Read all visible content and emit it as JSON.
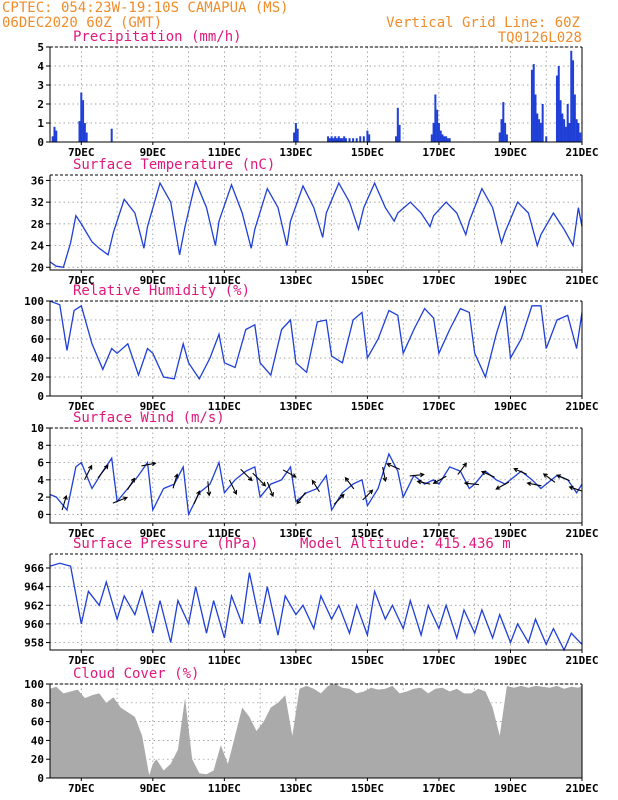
{
  "header": {
    "left_line1": "CPTEC:  054:23W-19:10S  CAMAPUA (MS)",
    "left_line2": "06DEC2020 60Z (GMT)",
    "right_line1": "Vertical Grid Line: 60Z",
    "right_line2": "TQ0126L028"
  },
  "colors": {
    "line": "#1f3fd6",
    "bar": "#1f3fd6",
    "cloud": "#aaaaaa",
    "title": "#e0197c",
    "header": "#f08c2a",
    "arrow": "#000000"
  },
  "x_axis": {
    "start_day": 6.125,
    "end_day": 21.0,
    "tick_days": [
      7,
      9,
      11,
      13,
      15,
      17,
      19,
      21
    ],
    "tick_labels": [
      "7DEC",
      "9DEC",
      "11DEC",
      "13DEC",
      "15DEC",
      "17DEC",
      "19DEC",
      "21DEC"
    ]
  },
  "chart_data": [
    {
      "id": "precip",
      "type": "bar",
      "title": "Precipitation (mm/h)",
      "ylim": [
        0,
        5
      ],
      "yticks": [
        0,
        1,
        2,
        3,
        4,
        5
      ],
      "x": [
        6.2,
        6.25,
        6.3,
        6.95,
        7.0,
        7.05,
        7.1,
        7.15,
        7.85,
        12.95,
        13.0,
        13.05,
        13.9,
        13.95,
        14.0,
        14.05,
        14.1,
        14.15,
        14.2,
        14.25,
        14.3,
        14.35,
        14.4,
        14.5,
        14.6,
        14.7,
        14.8,
        14.9,
        15.0,
        15.05,
        15.8,
        15.85,
        15.9,
        16.8,
        16.85,
        16.9,
        16.95,
        17.0,
        17.05,
        17.1,
        17.15,
        17.2,
        17.25,
        17.3,
        18.7,
        18.75,
        18.8,
        18.85,
        18.9,
        19.6,
        19.65,
        19.7,
        19.75,
        19.8,
        19.85,
        19.9,
        20.0,
        20.3,
        20.35,
        20.4,
        20.45,
        20.5,
        20.55,
        20.6,
        20.65,
        20.7,
        20.75,
        20.8,
        20.85,
        20.9,
        20.95
      ],
      "values": [
        0.3,
        0.8,
        0.6,
        1.1,
        2.6,
        2.2,
        1.0,
        0.5,
        0.7,
        0.5,
        1.0,
        0.7,
        0.3,
        0.2,
        0.3,
        0.2,
        0.3,
        0.2,
        0.3,
        0.2,
        0.2,
        0.3,
        0.2,
        0.2,
        0.2,
        0.2,
        0.3,
        0.3,
        0.6,
        0.4,
        0.3,
        1.8,
        0.9,
        0.4,
        1.0,
        2.5,
        1.7,
        1.0,
        0.6,
        0.4,
        0.3,
        0.3,
        0.2,
        0.2,
        0.5,
        1.2,
        2.1,
        1.0,
        0.4,
        3.8,
        4.1,
        2.5,
        1.5,
        1.2,
        1.0,
        2.0,
        0.3,
        3.5,
        4.0,
        2.2,
        1.5,
        1.2,
        0.8,
        2.0,
        1.0,
        4.8,
        4.3,
        2.5,
        1.2,
        1.0,
        0.5
      ]
    },
    {
      "id": "temp",
      "type": "line",
      "title": "Surface Temperature (nC)",
      "ylim": [
        19.5,
        37
      ],
      "yticks": [
        20,
        24,
        28,
        32,
        36
      ],
      "x": [
        6.125,
        6.3,
        6.5,
        6.7,
        6.85,
        7.0,
        7.3,
        7.5,
        7.75,
        7.9,
        8.2,
        8.5,
        8.75,
        8.85,
        9.2,
        9.5,
        9.75,
        9.9,
        10.2,
        10.5,
        10.75,
        10.85,
        11.2,
        11.5,
        11.75,
        11.85,
        12.2,
        12.5,
        12.75,
        12.85,
        13.2,
        13.5,
        13.75,
        13.85,
        14.2,
        14.5,
        14.75,
        14.9,
        15.2,
        15.5,
        15.75,
        15.85,
        16.2,
        16.5,
        16.75,
        16.85,
        17.2,
        17.5,
        17.75,
        17.85,
        18.2,
        18.5,
        18.75,
        18.85,
        19.2,
        19.5,
        19.75,
        19.85,
        20.2,
        20.5,
        20.75,
        20.9,
        21.0
      ],
      "values": [
        21,
        20.2,
        20,
        24.5,
        29.5,
        28,
        24.7,
        23.5,
        22.3,
        26.5,
        32.5,
        30,
        23.5,
        27.5,
        35.5,
        32,
        22.3,
        27.5,
        35.8,
        31,
        24,
        28.5,
        35.2,
        30,
        23.5,
        27,
        34.5,
        31,
        24,
        28.5,
        35,
        31,
        25.5,
        30,
        35.5,
        32,
        27,
        31,
        35.5,
        31,
        28.5,
        30,
        32,
        30,
        27.5,
        29.5,
        32,
        30,
        26,
        28.5,
        34.5,
        31,
        24.5,
        26.5,
        32,
        30,
        24,
        26,
        30,
        27,
        24,
        31,
        27.5
      ]
    },
    {
      "id": "rh",
      "type": "line",
      "title": "Relative Humidity (%)",
      "ylim": [
        0,
        100
      ],
      "yticks": [
        0,
        20,
        40,
        60,
        80,
        100
      ],
      "x": [
        6.125,
        6.4,
        6.6,
        6.8,
        7.0,
        7.3,
        7.6,
        7.85,
        8.0,
        8.3,
        8.6,
        8.85,
        9.0,
        9.3,
        9.6,
        9.85,
        10.0,
        10.3,
        10.6,
        10.85,
        11.0,
        11.3,
        11.6,
        11.85,
        12.0,
        12.3,
        12.6,
        12.85,
        13.0,
        13.3,
        13.6,
        13.85,
        14.0,
        14.3,
        14.6,
        14.85,
        15.0,
        15.3,
        15.6,
        15.85,
        16.0,
        16.3,
        16.6,
        16.85,
        17.0,
        17.3,
        17.6,
        17.85,
        18.0,
        18.3,
        18.6,
        18.85,
        19.0,
        19.3,
        19.6,
        19.85,
        20.0,
        20.3,
        20.6,
        20.85,
        21.0
      ],
      "values": [
        100,
        96,
        48,
        90,
        95,
        55,
        28,
        50,
        45,
        55,
        22,
        50,
        45,
        20,
        18,
        55,
        35,
        18,
        40,
        65,
        35,
        30,
        70,
        75,
        35,
        22,
        70,
        80,
        35,
        25,
        78,
        80,
        42,
        35,
        80,
        88,
        40,
        60,
        90,
        85,
        45,
        70,
        92,
        82,
        45,
        70,
        92,
        88,
        45,
        20,
        65,
        95,
        40,
        60,
        95,
        95,
        50,
        80,
        85,
        50,
        88
      ]
    },
    {
      "id": "wind",
      "type": "line",
      "title": "Surface Wind (m/s)",
      "ylim": [
        -1,
        10
      ],
      "yticks": [
        0,
        2,
        4,
        6,
        8,
        10
      ],
      "x": [
        6.125,
        6.3,
        6.6,
        6.85,
        7.0,
        7.3,
        7.6,
        7.85,
        8.0,
        8.3,
        8.6,
        8.85,
        9.0,
        9.3,
        9.6,
        9.85,
        10.0,
        10.3,
        10.6,
        10.85,
        11.0,
        11.3,
        11.6,
        11.85,
        12.0,
        12.3,
        12.6,
        12.85,
        13.0,
        13.3,
        13.6,
        13.85,
        14.0,
        14.3,
        14.6,
        14.85,
        15.0,
        15.3,
        15.6,
        15.85,
        16.0,
        16.3,
        16.6,
        16.85,
        17.0,
        17.3,
        17.6,
        17.85,
        18.0,
        18.3,
        18.6,
        18.85,
        19.0,
        19.3,
        19.6,
        19.85,
        20.0,
        20.3,
        20.6,
        20.85,
        21.0
      ],
      "values": [
        2.3,
        2.0,
        0.5,
        5.5,
        6.0,
        3.0,
        5.0,
        6.5,
        1.5,
        3.0,
        4.5,
        6.0,
        0.5,
        3.0,
        3.5,
        5.5,
        0.0,
        2.5,
        3.5,
        6.0,
        2.5,
        4.0,
        5.0,
        5.5,
        2.0,
        3.5,
        4.0,
        5.5,
        1.5,
        2.5,
        3.0,
        4.5,
        0.5,
        2.5,
        3.5,
        4.0,
        1.0,
        3.0,
        7.0,
        5.0,
        2.0,
        4.5,
        3.5,
        4.0,
        3.5,
        5.5,
        5.0,
        3.0,
        3.5,
        5.0,
        4.0,
        3.5,
        4.0,
        5.0,
        4.0,
        3.0,
        3.5,
        4.5,
        4.0,
        2.5,
        3.5
      ],
      "arrows": [
        {
          "day": 6.5,
          "u": 0.3,
          "v": 1
        },
        {
          "day": 7.15,
          "u": 0.5,
          "v": 1
        },
        {
          "day": 7.55,
          "u": 0.7,
          "v": 0.9
        },
        {
          "day": 8.0,
          "u": 1,
          "v": 0.4
        },
        {
          "day": 8.35,
          "u": 0.5,
          "v": 0.8
        },
        {
          "day": 8.8,
          "u": 1,
          "v": 0.2
        },
        {
          "day": 9.6,
          "u": 0.3,
          "v": 1
        },
        {
          "day": 10.2,
          "u": 0.4,
          "v": 0.9
        },
        {
          "day": 10.55,
          "u": 0.1,
          "v": -1
        },
        {
          "day": 11.2,
          "u": 0.5,
          "v": -1
        },
        {
          "day": 11.55,
          "u": 0.8,
          "v": -0.8
        },
        {
          "day": 11.9,
          "u": 0.9,
          "v": -0.9
        },
        {
          "day": 12.25,
          "u": 0.4,
          "v": -1
        },
        {
          "day": 12.75,
          "u": 0.9,
          "v": -0.5
        },
        {
          "day": 13.2,
          "u": -0.6,
          "v": -0.8
        },
        {
          "day": 13.6,
          "u": -0.5,
          "v": 0.8
        },
        {
          "day": 14.15,
          "u": 0.7,
          "v": 0.7
        },
        {
          "day": 14.55,
          "u": -0.6,
          "v": 0.8
        },
        {
          "day": 14.95,
          "u": 0.7,
          "v": 0.7
        },
        {
          "day": 15.45,
          "u": 0.2,
          "v": -1
        },
        {
          "day": 15.8,
          "u": -0.9,
          "v": 0.4
        },
        {
          "day": 16.3,
          "u": 1,
          "v": 0.1
        },
        {
          "day": 16.65,
          "u": -0.9,
          "v": 0.2
        },
        {
          "day": 17.1,
          "u": -0.9,
          "v": -0.5
        },
        {
          "day": 17.6,
          "u": 0.6,
          "v": 0.8
        },
        {
          "day": 18.0,
          "u": -1,
          "v": 0.1
        },
        {
          "day": 18.45,
          "u": -0.9,
          "v": 0.4
        },
        {
          "day": 18.85,
          "u": -0.9,
          "v": -0.5
        },
        {
          "day": 19.35,
          "u": -0.9,
          "v": 0.4
        },
        {
          "day": 19.75,
          "u": -1,
          "v": 0.2
        },
        {
          "day": 20.15,
          "u": -0.8,
          "v": 0.6
        },
        {
          "day": 20.55,
          "u": -0.9,
          "v": 0.4
        },
        {
          "day": 20.9,
          "u": -0.9,
          "v": 0.3
        }
      ]
    },
    {
      "id": "pres",
      "type": "line",
      "title": "Surface Pressure (hPa)",
      "annotation": "Model Altitude: 415.436 m",
      "ylim": [
        957.2,
        967.5
      ],
      "yticks": [
        958,
        960,
        962,
        964,
        966
      ],
      "x": [
        6.125,
        6.4,
        6.7,
        7.0,
        7.2,
        7.5,
        7.7,
        8.0,
        8.2,
        8.5,
        8.7,
        9.0,
        9.2,
        9.5,
        9.7,
        10.0,
        10.2,
        10.5,
        10.7,
        11.0,
        11.2,
        11.5,
        11.7,
        12.0,
        12.2,
        12.5,
        12.7,
        13.0,
        13.2,
        13.5,
        13.7,
        14.0,
        14.2,
        14.5,
        14.7,
        15.0,
        15.2,
        15.5,
        15.7,
        16.0,
        16.2,
        16.5,
        16.7,
        17.0,
        17.2,
        17.5,
        17.7,
        18.0,
        18.2,
        18.5,
        18.7,
        19.0,
        19.2,
        19.5,
        19.7,
        20.0,
        20.2,
        20.5,
        20.7,
        21.0
      ],
      "values": [
        966.2,
        966.5,
        966.2,
        960,
        963.5,
        962,
        964.5,
        960.5,
        963,
        961,
        963.5,
        959,
        962.5,
        958,
        962.5,
        960,
        964,
        959,
        962.5,
        958.5,
        963,
        960,
        965.5,
        960,
        964,
        958.8,
        963,
        961,
        962,
        959.5,
        963,
        960.5,
        962,
        959,
        962,
        958.8,
        963.5,
        960.5,
        962,
        959.5,
        962.5,
        958.8,
        962,
        959.5,
        962,
        958.5,
        961.5,
        959,
        961.5,
        958.5,
        961,
        958,
        960,
        958,
        960.5,
        957.8,
        959.5,
        957.2,
        959,
        957.8
      ]
    },
    {
      "id": "cloud",
      "type": "area",
      "title": "Cloud Cover (%)",
      "ylim": [
        0,
        100
      ],
      "yticks": [
        0,
        20,
        40,
        60,
        80,
        100
      ],
      "x": [
        6.125,
        6.3,
        6.5,
        6.7,
        6.9,
        7.1,
        7.3,
        7.5,
        7.7,
        7.9,
        8.1,
        8.3,
        8.5,
        8.7,
        8.9,
        9.0,
        9.1,
        9.3,
        9.5,
        9.7,
        9.9,
        10.1,
        10.3,
        10.5,
        10.7,
        10.9,
        11.1,
        11.3,
        11.5,
        11.7,
        11.9,
        12.1,
        12.3,
        12.5,
        12.7,
        12.9,
        13.1,
        13.3,
        13.5,
        13.7,
        13.9,
        14.1,
        14.3,
        14.5,
        14.7,
        14.9,
        15.1,
        15.3,
        15.5,
        15.7,
        15.9,
        16.1,
        16.3,
        16.5,
        16.7,
        16.9,
        17.1,
        17.3,
        17.5,
        17.7,
        17.9,
        18.1,
        18.3,
        18.5,
        18.7,
        18.9,
        19.1,
        19.3,
        19.5,
        19.7,
        19.9,
        20.1,
        20.3,
        20.5,
        20.7,
        20.9,
        21.0
      ],
      "values": [
        95,
        97,
        90,
        92,
        94,
        85,
        88,
        90,
        80,
        86,
        75,
        70,
        65,
        45,
        3,
        15,
        20,
        8,
        15,
        30,
        85,
        20,
        5,
        4,
        8,
        35,
        15,
        45,
        75,
        65,
        50,
        60,
        75,
        80,
        88,
        45,
        95,
        98,
        95,
        90,
        98,
        100,
        96,
        95,
        90,
        92,
        96,
        94,
        95,
        98,
        90,
        92,
        95,
        96,
        90,
        95,
        96,
        92,
        95,
        90,
        90,
        95,
        92,
        75,
        45,
        98,
        96,
        98,
        96,
        98,
        97,
        96,
        98,
        95,
        97,
        96,
        98
      ]
    }
  ]
}
